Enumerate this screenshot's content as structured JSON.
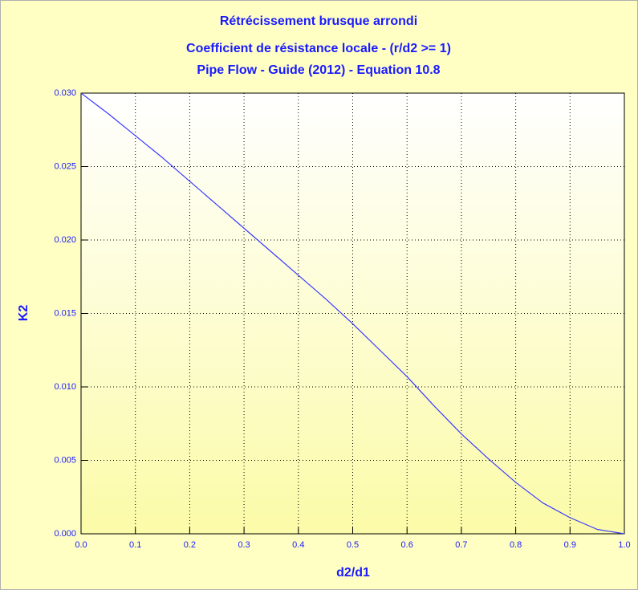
{
  "chart_data": {
    "type": "line",
    "title": [
      "Rétrécissement brusque arrondi",
      "Coefficient de résistance locale - (r/d2 >= 1)",
      "Pipe Flow - Guide (2012) - Equation 10.8"
    ],
    "x_label": "d2/d1",
    "y_label": "K2",
    "x": [
      0,
      0.05,
      0.1,
      0.15,
      0.2,
      0.25,
      0.3,
      0.35,
      0.4,
      0.45,
      0.5,
      0.55,
      0.6,
      0.65,
      0.7,
      0.75,
      0.8,
      0.85,
      0.9,
      0.95,
      1.0
    ],
    "series": [
      {
        "color": "#3a3aff",
        "values": [
          0.03,
          0.0286,
          0.0271,
          0.0256,
          0.024,
          0.0224,
          0.0208,
          0.0192,
          0.0176,
          0.016,
          0.0143,
          0.0125,
          0.0107,
          0.0087,
          0.0068,
          0.0051,
          0.0035,
          0.0021,
          0.0011,
          0.0003,
          0
        ]
      }
    ],
    "xlim": [
      0,
      1.0
    ],
    "ylim": [
      0,
      0.03
    ],
    "xticks": [
      {
        "value": 0,
        "label": "0.0"
      },
      {
        "value": 0.1,
        "label": "0.1"
      },
      {
        "value": 0.2,
        "label": "0.2"
      },
      {
        "value": 0.3,
        "label": "0.3"
      },
      {
        "value": 0.4,
        "label": "0.4"
      },
      {
        "value": 0.5,
        "label": "0.5"
      },
      {
        "value": 0.6,
        "label": "0.6"
      },
      {
        "value": 0.7,
        "label": "0.7"
      },
      {
        "value": 0.8,
        "label": "0.8"
      },
      {
        "value": 0.9,
        "label": "0.9"
      },
      {
        "value": 1.0,
        "label": "1.0"
      }
    ],
    "yticks": [
      {
        "value": 0,
        "label": "0.000"
      },
      {
        "value": 0.005,
        "label": "0.005"
      },
      {
        "value": 0.01,
        "label": "0.010"
      },
      {
        "value": 0.015,
        "label": "0.015"
      },
      {
        "value": 0.02,
        "label": "0.020"
      },
      {
        "value": 0.025,
        "label": "0.025"
      },
      {
        "value": 0.03,
        "label": "0.030"
      }
    ],
    "grid": true
  }
}
